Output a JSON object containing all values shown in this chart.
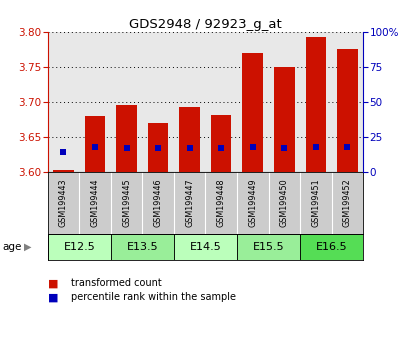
{
  "title": "GDS2948 / 92923_g_at",
  "samples": [
    "GSM199443",
    "GSM199444",
    "GSM199445",
    "GSM199446",
    "GSM199447",
    "GSM199448",
    "GSM199449",
    "GSM199450",
    "GSM199451",
    "GSM199452"
  ],
  "red_values": [
    3.602,
    3.68,
    3.695,
    3.67,
    3.692,
    3.681,
    3.77,
    3.75,
    3.793,
    3.775
  ],
  "blue_values": [
    3.628,
    3.635,
    3.634,
    3.634,
    3.634,
    3.634,
    3.635,
    3.634,
    3.635,
    3.635
  ],
  "age_groups": [
    {
      "label": "E12.5",
      "cols": [
        0,
        1
      ],
      "color": "#bbffbb"
    },
    {
      "label": "E13.5",
      "cols": [
        2,
        3
      ],
      "color": "#99ee99"
    },
    {
      "label": "E14.5",
      "cols": [
        4,
        5
      ],
      "color": "#bbffbb"
    },
    {
      "label": "E15.5",
      "cols": [
        6,
        7
      ],
      "color": "#99ee99"
    },
    {
      "label": "E16.5",
      "cols": [
        8,
        9
      ],
      "color": "#55dd55"
    }
  ],
  "ylim_left": [
    3.6,
    3.8
  ],
  "ylim_right": [
    0,
    100
  ],
  "yticks_left": [
    3.6,
    3.65,
    3.7,
    3.75,
    3.8
  ],
  "yticks_right": [
    0,
    25,
    50,
    75,
    100
  ],
  "bar_bottom": 3.6,
  "red_color": "#cc1100",
  "blue_color": "#0000bb",
  "bar_width": 0.65,
  "bg_plot": "#e8e8e8",
  "bg_labels": "#cccccc",
  "bg_fig": "#ffffff"
}
